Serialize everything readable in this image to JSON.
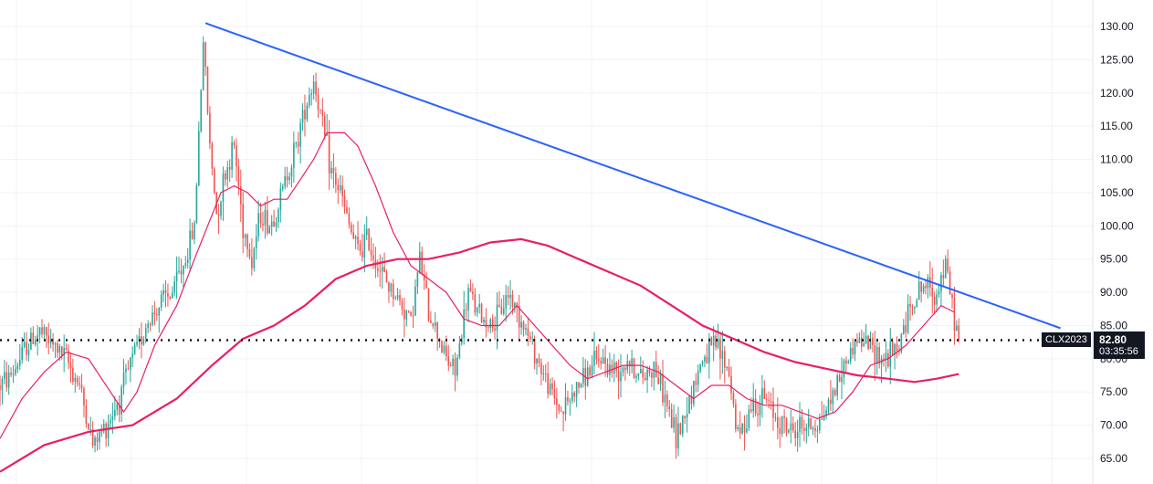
{
  "chart_data": {
    "type": "candlestick",
    "title": "",
    "xlabel": "",
    "ylabel": "",
    "ylim": [
      62,
      132
    ],
    "grid": true,
    "colors": {
      "up": "#26a69a",
      "down": "#ef5350",
      "ma_fast": "#e91e63",
      "ma_slow": "#e91e63",
      "trendline": "#2962ff",
      "price_line": "#131722",
      "grid": "#f0f3fa",
      "axis_text": "#131722"
    },
    "y_ticks": [
      "130.00",
      "125.00",
      "120.00",
      "115.00",
      "110.00",
      "105.00",
      "100.00",
      "95.00",
      "90.00",
      "85.00",
      "80.00",
      "75.00",
      "70.00",
      "65.00"
    ],
    "price_series": [
      {
        "i": 0,
        "p": 76
      },
      {
        "i": 6,
        "p": 78
      },
      {
        "i": 12,
        "p": 82
      },
      {
        "i": 18,
        "p": 84
      },
      {
        "i": 24,
        "p": 82
      },
      {
        "i": 30,
        "p": 80
      },
      {
        "i": 36,
        "p": 76
      },
      {
        "i": 42,
        "p": 67
      },
      {
        "i": 48,
        "p": 70
      },
      {
        "i": 54,
        "p": 74
      },
      {
        "i": 60,
        "p": 80
      },
      {
        "i": 66,
        "p": 85
      },
      {
        "i": 72,
        "p": 88
      },
      {
        "i": 78,
        "p": 90
      },
      {
        "i": 84,
        "p": 95
      },
      {
        "i": 88,
        "p": 100
      },
      {
        "i": 92,
        "p": 128
      },
      {
        "i": 95,
        "p": 112
      },
      {
        "i": 98,
        "p": 102
      },
      {
        "i": 102,
        "p": 108
      },
      {
        "i": 106,
        "p": 112
      },
      {
        "i": 110,
        "p": 100
      },
      {
        "i": 114,
        "p": 95
      },
      {
        "i": 118,
        "p": 102
      },
      {
        "i": 122,
        "p": 100
      },
      {
        "i": 126,
        "p": 103
      },
      {
        "i": 130,
        "p": 108
      },
      {
        "i": 134,
        "p": 112
      },
      {
        "i": 138,
        "p": 118
      },
      {
        "i": 142,
        "p": 122
      },
      {
        "i": 146,
        "p": 115
      },
      {
        "i": 150,
        "p": 108
      },
      {
        "i": 154,
        "p": 105
      },
      {
        "i": 158,
        "p": 100
      },
      {
        "i": 162,
        "p": 96
      },
      {
        "i": 166,
        "p": 98
      },
      {
        "i": 170,
        "p": 95
      },
      {
        "i": 174,
        "p": 92
      },
      {
        "i": 178,
        "p": 90
      },
      {
        "i": 182,
        "p": 88
      },
      {
        "i": 186,
        "p": 86
      },
      {
        "i": 190,
        "p": 95
      },
      {
        "i": 194,
        "p": 87
      },
      {
        "i": 198,
        "p": 84
      },
      {
        "i": 202,
        "p": 80
      },
      {
        "i": 206,
        "p": 78
      },
      {
        "i": 212,
        "p": 90
      },
      {
        "i": 218,
        "p": 86
      },
      {
        "i": 224,
        "p": 85
      },
      {
        "i": 230,
        "p": 90
      },
      {
        "i": 236,
        "p": 86
      },
      {
        "i": 242,
        "p": 81
      },
      {
        "i": 248,
        "p": 76
      },
      {
        "i": 254,
        "p": 72
      },
      {
        "i": 260,
        "p": 75
      },
      {
        "i": 266,
        "p": 78
      },
      {
        "i": 272,
        "p": 80
      },
      {
        "i": 278,
        "p": 78
      },
      {
        "i": 284,
        "p": 80
      },
      {
        "i": 290,
        "p": 77
      },
      {
        "i": 296,
        "p": 79
      },
      {
        "i": 302,
        "p": 73
      },
      {
        "i": 306,
        "p": 68
      },
      {
        "i": 312,
        "p": 74
      },
      {
        "i": 318,
        "p": 80
      },
      {
        "i": 324,
        "p": 82
      },
      {
        "i": 330,
        "p": 78
      },
      {
        "i": 334,
        "p": 68
      },
      {
        "i": 340,
        "p": 73
      },
      {
        "i": 346,
        "p": 74
      },
      {
        "i": 352,
        "p": 71
      },
      {
        "i": 358,
        "p": 69
      },
      {
        "i": 364,
        "p": 70
      },
      {
        "i": 370,
        "p": 70
      },
      {
        "i": 376,
        "p": 74
      },
      {
        "i": 382,
        "p": 79
      },
      {
        "i": 388,
        "p": 83
      },
      {
        "i": 394,
        "p": 82
      },
      {
        "i": 400,
        "p": 80
      },
      {
        "i": 406,
        "p": 81
      },
      {
        "i": 412,
        "p": 88
      },
      {
        "i": 418,
        "p": 91
      },
      {
        "i": 424,
        "p": 90
      },
      {
        "i": 428,
        "p": 94
      },
      {
        "i": 432,
        "p": 86
      },
      {
        "i": 434,
        "p": 82.8
      }
    ],
    "ma_fast": [
      {
        "i": 0,
        "p": 68
      },
      {
        "i": 10,
        "p": 74
      },
      {
        "i": 20,
        "p": 78
      },
      {
        "i": 30,
        "p": 81
      },
      {
        "i": 40,
        "p": 80
      },
      {
        "i": 50,
        "p": 75
      },
      {
        "i": 56,
        "p": 72
      },
      {
        "i": 62,
        "p": 75
      },
      {
        "i": 70,
        "p": 82
      },
      {
        "i": 80,
        "p": 88
      },
      {
        "i": 88,
        "p": 95
      },
      {
        "i": 94,
        "p": 100
      },
      {
        "i": 100,
        "p": 105
      },
      {
        "i": 106,
        "p": 106
      },
      {
        "i": 112,
        "p": 105
      },
      {
        "i": 118,
        "p": 103
      },
      {
        "i": 124,
        "p": 104
      },
      {
        "i": 130,
        "p": 104
      },
      {
        "i": 136,
        "p": 107
      },
      {
        "i": 142,
        "p": 110
      },
      {
        "i": 148,
        "p": 114
      },
      {
        "i": 156,
        "p": 114
      },
      {
        "i": 162,
        "p": 112
      },
      {
        "i": 170,
        "p": 106
      },
      {
        "i": 178,
        "p": 99
      },
      {
        "i": 186,
        "p": 94
      },
      {
        "i": 194,
        "p": 92
      },
      {
        "i": 202,
        "p": 90
      },
      {
        "i": 210,
        "p": 86
      },
      {
        "i": 218,
        "p": 85
      },
      {
        "i": 226,
        "p": 85
      },
      {
        "i": 234,
        "p": 88
      },
      {
        "i": 242,
        "p": 85
      },
      {
        "i": 250,
        "p": 82
      },
      {
        "i": 258,
        "p": 79
      },
      {
        "i": 266,
        "p": 77
      },
      {
        "i": 274,
        "p": 78
      },
      {
        "i": 282,
        "p": 79
      },
      {
        "i": 290,
        "p": 79
      },
      {
        "i": 298,
        "p": 78
      },
      {
        "i": 306,
        "p": 76
      },
      {
        "i": 314,
        "p": 74
      },
      {
        "i": 322,
        "p": 76
      },
      {
        "i": 330,
        "p": 76
      },
      {
        "i": 338,
        "p": 74
      },
      {
        "i": 346,
        "p": 73
      },
      {
        "i": 354,
        "p": 73
      },
      {
        "i": 362,
        "p": 72
      },
      {
        "i": 370,
        "p": 71
      },
      {
        "i": 378,
        "p": 72
      },
      {
        "i": 386,
        "p": 75
      },
      {
        "i": 394,
        "p": 79
      },
      {
        "i": 402,
        "p": 80
      },
      {
        "i": 410,
        "p": 82
      },
      {
        "i": 418,
        "p": 85
      },
      {
        "i": 426,
        "p": 88
      },
      {
        "i": 432,
        "p": 87
      }
    ],
    "ma_slow": [
      {
        "i": 0,
        "p": 63
      },
      {
        "i": 20,
        "p": 67
      },
      {
        "i": 40,
        "p": 69
      },
      {
        "i": 60,
        "p": 70
      },
      {
        "i": 80,
        "p": 74
      },
      {
        "i": 96,
        "p": 79
      },
      {
        "i": 110,
        "p": 83
      },
      {
        "i": 124,
        "p": 85
      },
      {
        "i": 138,
        "p": 88
      },
      {
        "i": 152,
        "p": 92
      },
      {
        "i": 166,
        "p": 94
      },
      {
        "i": 180,
        "p": 95
      },
      {
        "i": 194,
        "p": 95
      },
      {
        "i": 208,
        "p": 96
      },
      {
        "i": 222,
        "p": 97.5
      },
      {
        "i": 236,
        "p": 98
      },
      {
        "i": 248,
        "p": 97
      },
      {
        "i": 262,
        "p": 95
      },
      {
        "i": 276,
        "p": 93
      },
      {
        "i": 290,
        "p": 91
      },
      {
        "i": 304,
        "p": 88
      },
      {
        "i": 318,
        "p": 85
      },
      {
        "i": 332,
        "p": 83
      },
      {
        "i": 346,
        "p": 81
      },
      {
        "i": 360,
        "p": 79.5
      },
      {
        "i": 374,
        "p": 78.5
      },
      {
        "i": 388,
        "p": 77.5
      },
      {
        "i": 402,
        "p": 77
      },
      {
        "i": 414,
        "p": 76.5
      },
      {
        "i": 424,
        "p": 77
      },
      {
        "i": 434,
        "p": 77.7
      }
    ],
    "trendline": [
      {
        "i": 93,
        "p": 130.5
      },
      {
        "i": 480,
        "p": 84.6
      }
    ],
    "horizontal_line": 82.8,
    "last_price": "82.80",
    "symbol": "CLX2023",
    "countdown": "03:35:56"
  }
}
